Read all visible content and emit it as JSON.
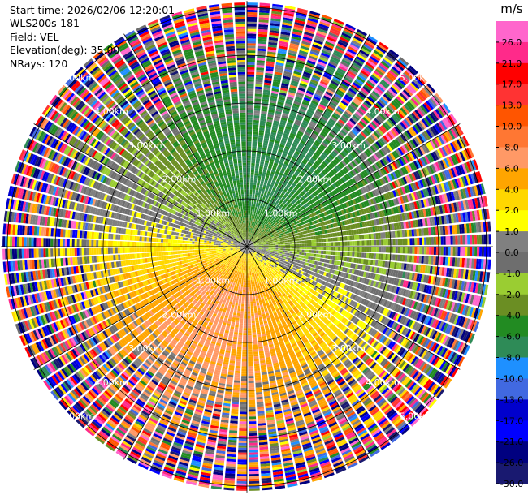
{
  "header": {
    "start_time": "Start time: 2026/02/06 12:20:01",
    "instrument": "WLS200s-181",
    "field": "Field: VEL",
    "elevation": "Elevation(deg): 35.00",
    "nrays": "NRays: 120"
  },
  "chart_data": {
    "type": "heatmap",
    "projection": "polar-ppi",
    "field": "VEL",
    "units": "m/s",
    "n_rays": 120,
    "range_rings_km": [
      1,
      2,
      3,
      4,
      5
    ],
    "range_ring_labels": [
      "1.00km",
      "2.00km",
      "3.00km",
      "4.00km",
      "5.00km"
    ],
    "max_range_km": 5.1,
    "colorbar": {
      "unit": "m/s",
      "ticks": [
        "26.0",
        "21.0",
        "17.0",
        "13.0",
        "10.0",
        "8.0",
        "6.0",
        "4.0",
        "2.0",
        "1.0",
        "0.0",
        "-1.0",
        "-2.0",
        "-4.0",
        "-6.0",
        "-8.0",
        "-10.0",
        "-13.0",
        "-17.0",
        "-21.0",
        "-26.0",
        "-30.0"
      ],
      "boundaries": [
        30,
        26,
        21,
        17,
        13,
        10,
        8,
        6,
        4,
        2,
        1,
        0,
        -1,
        -2,
        -4,
        -6,
        -8,
        -10,
        -13,
        -17,
        -21,
        -26,
        -30
      ],
      "colors": [
        "#ff66cc",
        "#ff2a8a",
        "#ff0000",
        "#ff3333",
        "#ff5500",
        "#ff7733",
        "#ff9966",
        "#ffa500",
        "#ffd700",
        "#ffff00",
        "#808080",
        "#6e6e6e",
        "#9acd32",
        "#6b8e23",
        "#228b22",
        "#2e8b57",
        "#1e90ff",
        "#4169e1",
        "#0000cd",
        "#0000ff",
        "#000080",
        "#191970"
      ]
    },
    "velocity_pattern": {
      "inner_region_km": 2.6,
      "noise_begins_km": 3.2,
      "positive_sector_deg": [
        95,
        265
      ],
      "negative_sector_deg": [
        -60,
        70
      ]
    }
  }
}
